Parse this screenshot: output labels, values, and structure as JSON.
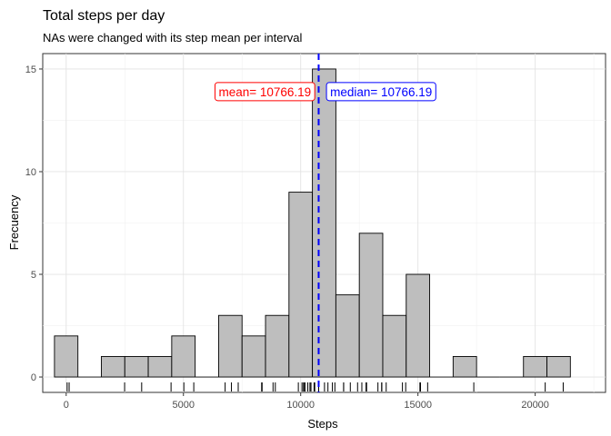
{
  "chart_data": {
    "type": "bar",
    "title": "Total steps per day",
    "subtitle": "NAs were changed with its step mean per interval",
    "xlabel": "Steps",
    "ylabel": "Frecuency",
    "xlim": [
      -1000,
      23000
    ],
    "ylim": [
      -0.75,
      15.75
    ],
    "x_ticks": [
      0,
      5000,
      10000,
      15000,
      20000
    ],
    "y_ticks": [
      0,
      5,
      10,
      15
    ],
    "x_tick_labels": [
      "0",
      "5000",
      "10000",
      "15000",
      "20000"
    ],
    "y_tick_labels": [
      "0",
      "5",
      "10",
      "15"
    ],
    "grid": true,
    "bar_fill": "#bebebe",
    "bar_stroke": "#000000",
    "bins": [
      {
        "start": -500,
        "end": 500,
        "count": 2
      },
      {
        "start": 500,
        "end": 1500,
        "count": 0
      },
      {
        "start": 1500,
        "end": 2500,
        "count": 1
      },
      {
        "start": 2500,
        "end": 3500,
        "count": 1
      },
      {
        "start": 3500,
        "end": 4500,
        "count": 1
      },
      {
        "start": 4500,
        "end": 5500,
        "count": 2
      },
      {
        "start": 5500,
        "end": 6500,
        "count": 0
      },
      {
        "start": 6500,
        "end": 7500,
        "count": 3
      },
      {
        "start": 7500,
        "end": 8500,
        "count": 2
      },
      {
        "start": 8500,
        "end": 9500,
        "count": 3
      },
      {
        "start": 9500,
        "end": 10500,
        "count": 9
      },
      {
        "start": 10500,
        "end": 11500,
        "count": 15
      },
      {
        "start": 11500,
        "end": 12500,
        "count": 4
      },
      {
        "start": 12500,
        "end": 13500,
        "count": 7
      },
      {
        "start": 13500,
        "end": 14500,
        "count": 3
      },
      {
        "start": 14500,
        "end": 15500,
        "count": 5
      },
      {
        "start": 15500,
        "end": 16500,
        "count": 0
      },
      {
        "start": 16500,
        "end": 17500,
        "count": 1
      },
      {
        "start": 17500,
        "end": 18500,
        "count": 0
      },
      {
        "start": 18500,
        "end": 19500,
        "count": 0
      },
      {
        "start": 19500,
        "end": 20500,
        "count": 1
      },
      {
        "start": 20500,
        "end": 21500,
        "count": 1
      }
    ],
    "rug": [
      41,
      126,
      2492,
      3219,
      4472,
      5018,
      5441,
      6778,
      7047,
      7336,
      8334,
      8355,
      8821,
      8918,
      9900,
      10056,
      10119,
      10139,
      10183,
      10304,
      10395,
      10439,
      10571,
      10600,
      10766,
      10765,
      11015,
      11162,
      11352,
      11458,
      11829,
      11834,
      12116,
      12426,
      12608,
      12787,
      12811,
      13294,
      13452,
      13460,
      13646,
      14339,
      14478,
      15084,
      15098,
      15110,
      15414,
      17382,
      20427,
      21194
    ],
    "mean_line": {
      "x": 10766.19,
      "color": "#0000ff",
      "style": "dashed"
    },
    "annotations": [
      {
        "text": "mean= 10766.19",
        "x_anchor": 10600,
        "y": 13.9,
        "align": "right",
        "color": "#ff0000"
      },
      {
        "text": "median= 10766.19",
        "x_anchor": 11100,
        "y": 13.9,
        "align": "left",
        "color": "#0000ff"
      }
    ]
  }
}
